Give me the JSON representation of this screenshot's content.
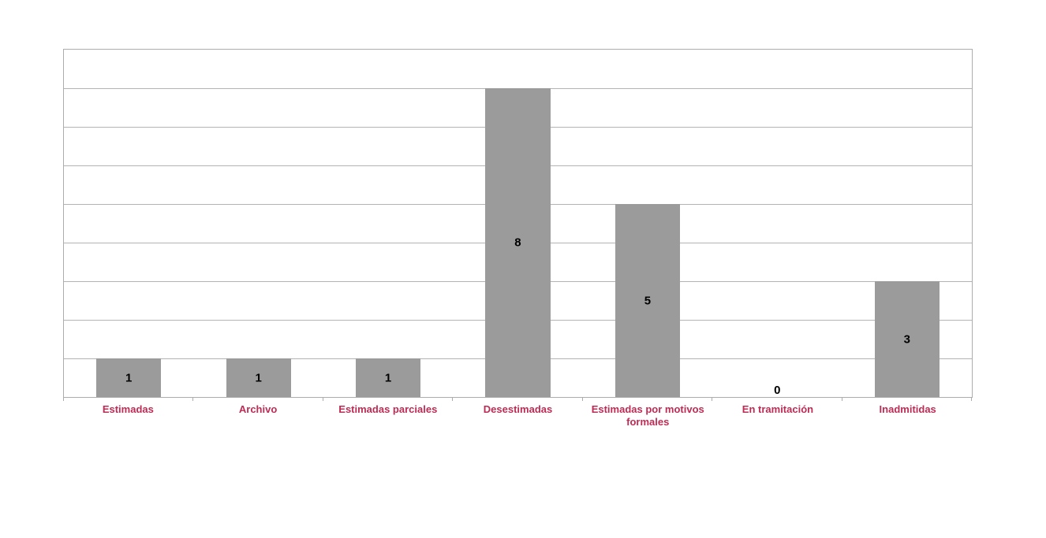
{
  "page": {
    "background_color": "#ffffff"
  },
  "chart_data": {
    "type": "bar",
    "title": "",
    "xlabel": "",
    "ylabel": "",
    "categories": [
      "Estimadas",
      "Archivo",
      "Estimadas parciales",
      "Desestimadas",
      "Estimadas por motivos formales",
      "En tramitación",
      "Inadmitidas"
    ],
    "values": [
      1,
      1,
      1,
      8,
      5,
      0,
      3
    ],
    "ylim": [
      0,
      9
    ],
    "gridlines": "horizontal, every 1 unit, no y tick labels",
    "legend": "none",
    "value_labels": "shown in black bold, centered inside each bar; zero value shown just above axis",
    "colors": {
      "bar_fill": "#9b9b9b",
      "category_label": "#be2b54",
      "value_label": "#000000",
      "axis_and_border": "#acacac",
      "gridline": "#b3b3b3",
      "background": "#ffffff"
    }
  }
}
